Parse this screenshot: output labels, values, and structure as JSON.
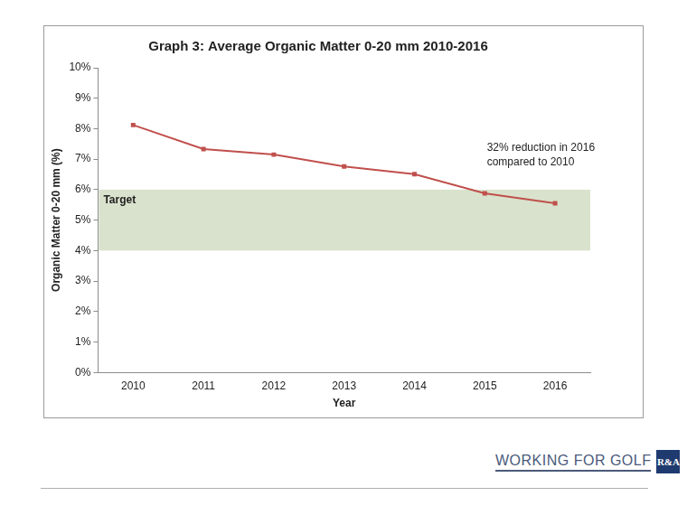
{
  "chart_data": {
    "type": "line",
    "title": "Graph 3: Average Organic Matter 0-20 mm 2010-2016",
    "x_label": "Year",
    "y_label": "Organic Matter 0-20 mm (%)",
    "categories": [
      "2010",
      "2011",
      "2012",
      "2013",
      "2014",
      "2015",
      "2016"
    ],
    "values": [
      8.12,
      7.33,
      7.15,
      6.76,
      6.51,
      5.88,
      5.55
    ],
    "color": "#c0504d",
    "marker": "square",
    "line_style": "solid",
    "ylim": [
      0,
      10
    ],
    "yticks": [
      {
        "value": 0,
        "label": "0%"
      },
      {
        "value": 1,
        "label": "1%"
      },
      {
        "value": 2,
        "label": "2%"
      },
      {
        "value": 3,
        "label": "3%"
      },
      {
        "value": 4,
        "label": "4%"
      },
      {
        "value": 5,
        "label": "5%"
      },
      {
        "value": 6,
        "label": "6%"
      },
      {
        "value": 7,
        "label": "7%"
      },
      {
        "value": 8,
        "label": "8%"
      },
      {
        "value": 9,
        "label": "9%"
      },
      {
        "value": 10,
        "label": "10%"
      }
    ],
    "grid": false,
    "target_band": {
      "label": "Target",
      "from": 4,
      "to": 6
    },
    "annotation": [
      "32% reduction in 2016",
      "compared to 2010"
    ]
  },
  "footer": {
    "brand": "WORKING FOR GOLF",
    "logo": "R&A"
  }
}
